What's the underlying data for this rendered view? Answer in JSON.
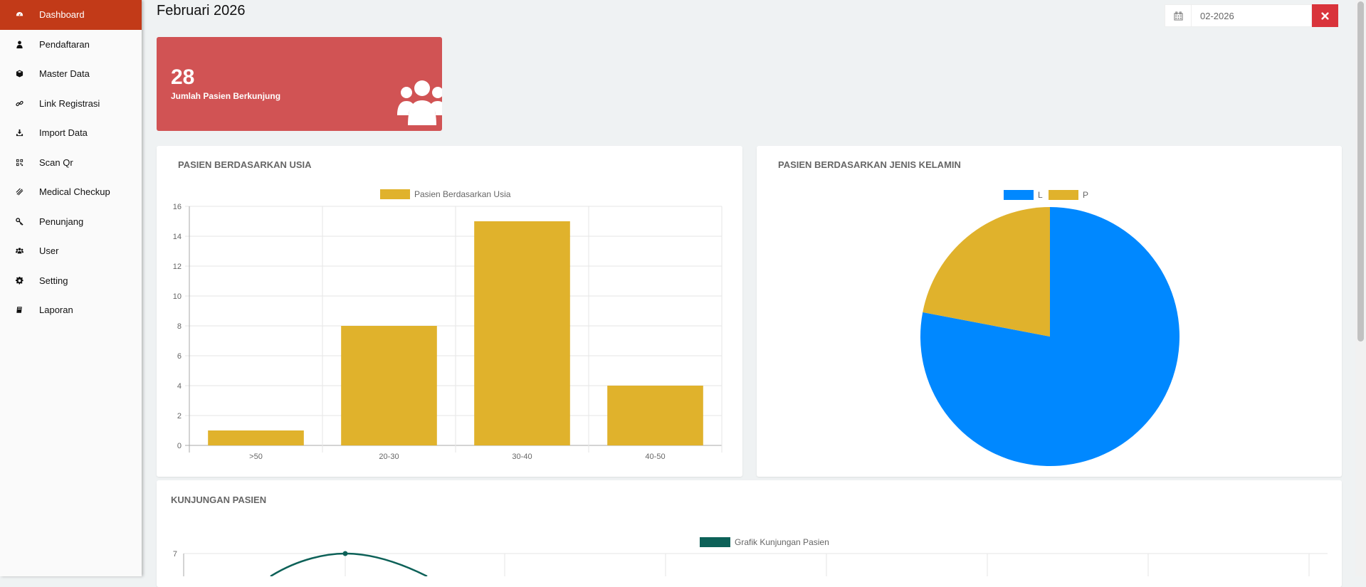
{
  "sidebar": {
    "items": [
      {
        "label": "Dashboard",
        "icon": "dashboard-icon",
        "active": true
      },
      {
        "label": "Pendaftaran",
        "icon": "user-icon"
      },
      {
        "label": "Master Data",
        "icon": "cube-icon"
      },
      {
        "label": "Link Registrasi",
        "icon": "link-icon"
      },
      {
        "label": "Import Data",
        "icon": "download-icon"
      },
      {
        "label": "Scan Qr",
        "icon": "qrcode-icon"
      },
      {
        "label": "Medical Checkup",
        "icon": "stethoscope-icon"
      },
      {
        "label": "Penunjang",
        "icon": "key-icon"
      },
      {
        "label": "User",
        "icon": "users-icon"
      },
      {
        "label": "Setting",
        "icon": "gear-icon"
      },
      {
        "label": "Laporan",
        "icon": "book-icon"
      }
    ]
  },
  "header": {
    "title": "Februari 2026",
    "date_value": "02-2026",
    "calendar_icon": "calendar-icon",
    "clear_icon": "close-icon"
  },
  "stat": {
    "value": "28",
    "label": "Jumlah Pasien Berkunjung",
    "icon": "users-icon",
    "color": "#d15354"
  },
  "cards": {
    "age": {
      "title": "PASIEN BERDASARKAN USIA"
    },
    "gender": {
      "title": "PASIEN BERDASARKAN JENIS KELAMIN"
    },
    "visits": {
      "title": "KUNJUNGAN PASIEN"
    }
  },
  "chart_data": [
    {
      "type": "bar",
      "categories": [
        ">50",
        "20-30",
        "30-40",
        "40-50"
      ],
      "series": [
        {
          "name": "Pasien Berdasarkan Usia",
          "values": [
            1,
            8,
            15,
            4
          ],
          "color": "#e0b22c"
        }
      ],
      "ylim": [
        0,
        16
      ],
      "yticks": [
        0,
        2,
        4,
        6,
        8,
        10,
        12,
        14,
        16
      ],
      "grid": true,
      "legend": "top"
    },
    {
      "type": "pie",
      "labels": [
        "L",
        "P"
      ],
      "values": [
        78,
        22
      ],
      "colors": [
        "#0088ff",
        "#e0b22c"
      ],
      "legend": "top"
    },
    {
      "type": "line",
      "series": [
        {
          "name": "Grafik Kunjungan Pasien",
          "color": "#0d6158",
          "visible_peak": 7
        }
      ],
      "yticks_visible": [
        7
      ],
      "grid": true,
      "legend": "top"
    }
  ]
}
